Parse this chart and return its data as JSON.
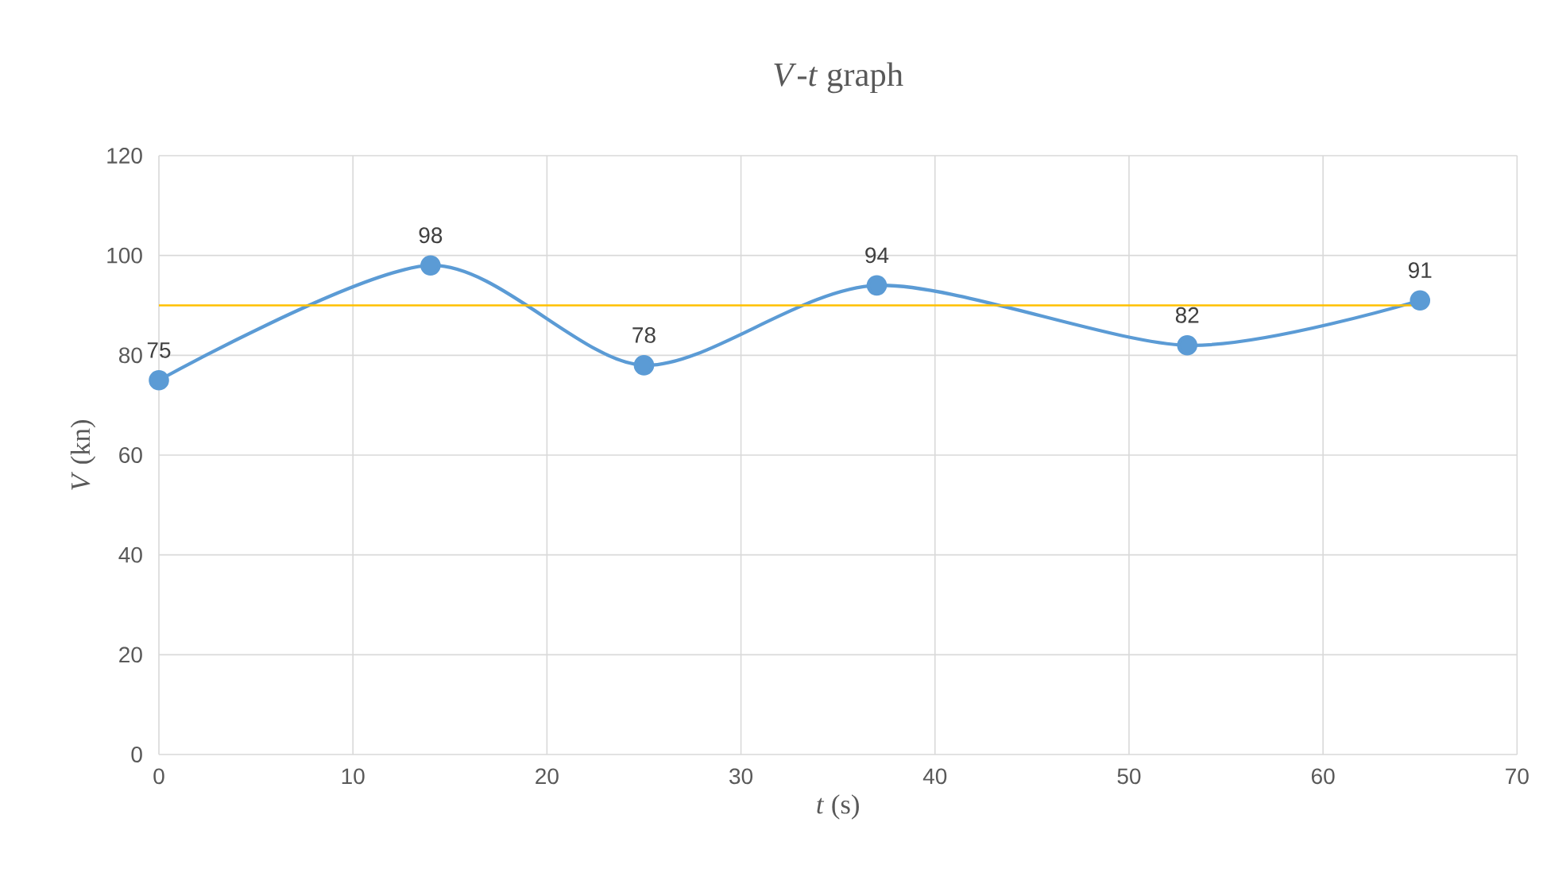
{
  "chart_data": {
    "type": "line",
    "title": "*V*-*t* graph",
    "xlabel": "*t* (s)",
    "ylabel": "*V* (kn)",
    "x": [
      0,
      14,
      25,
      37,
      53,
      65
    ],
    "series": [
      {
        "color": "#5b9bd5",
        "values": [
          75,
          98,
          78,
          94,
          82,
          91
        ]
      }
    ],
    "xlim": [
      0,
      70
    ],
    "xticks": [
      0,
      10,
      20,
      30,
      40,
      50,
      60,
      70
    ],
    "ylim": [
      0,
      120
    ],
    "yticks": [
      0,
      20,
      40,
      60,
      80,
      100,
      120
    ],
    "ref_lines": [
      {
        "axis": "y",
        "value": 90,
        "color": "#ffc000"
      }
    ],
    "grid": true,
    "marker": "circle",
    "line_style": "solid",
    "data_labels": true
  }
}
